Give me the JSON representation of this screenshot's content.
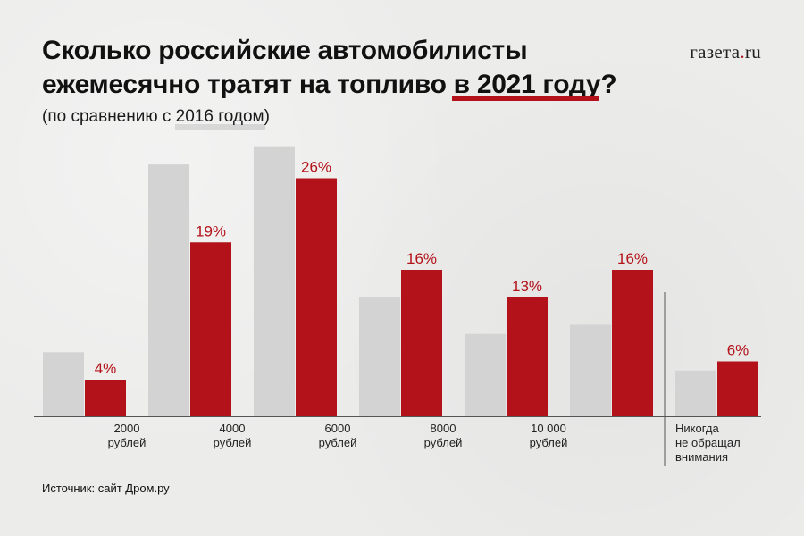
{
  "header": {
    "title_line1": "Сколько российские автомобилисты",
    "title_line2_before": "ежемесячно тратят на топливо ",
    "title_line2_highlight": "в 2021 году",
    "title_line2_after": "?",
    "subtitle_before": "(по сравнению с ",
    "subtitle_highlight": "2016 годом",
    "subtitle_after": ")",
    "logo_main": "газета",
    "logo_dot": ".",
    "logo_tld": "ru"
  },
  "footer": {
    "source": "Источник: сайт Дром.ру"
  },
  "colors": {
    "background": "#ececeb",
    "series_2016": "#d3d3d3",
    "series_2021": "#b3121a",
    "label_2021": "#b3121a",
    "axis": "#555555"
  },
  "chart_data": {
    "type": "bar",
    "categories": [
      "",
      "",
      "",
      "",
      "",
      "",
      ""
    ],
    "boundary_labels": [
      [
        "2000",
        "рублей"
      ],
      [
        "4000",
        "рублей"
      ],
      [
        "6000",
        "рублей"
      ],
      [
        "8000",
        "рублей"
      ],
      [
        "10 000",
        "рублей"
      ],
      [
        "Никогда",
        "не обращал",
        "внимания"
      ]
    ],
    "series": [
      {
        "values": [
          7,
          27.5,
          29.5,
          13,
          9,
          10,
          5
        ],
        "show_labels": false
      },
      {
        "values": [
          4,
          19,
          26,
          16,
          13,
          16,
          6
        ],
        "value_labels": [
          "4%",
          "19%",
          "26%",
          "16%",
          "13%",
          "16%",
          "6%"
        ],
        "show_labels": true
      }
    ],
    "ylim": [
      0,
      30
    ],
    "grid": false,
    "legend": "none",
    "separator_before_last_group": true
  }
}
